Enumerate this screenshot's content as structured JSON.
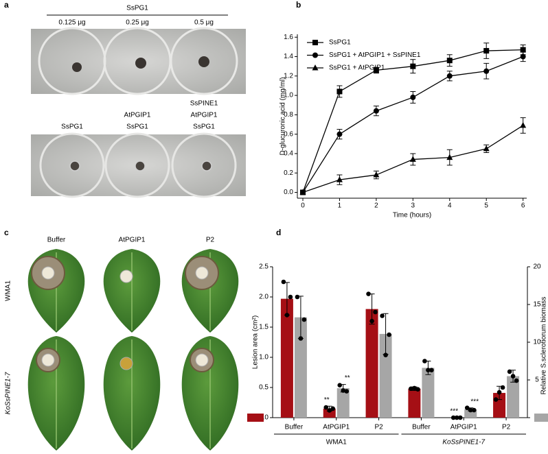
{
  "panels": {
    "a": {
      "label": "a",
      "header": "SsPG1",
      "doses": [
        "0.125 μg",
        "0.25 μg",
        "0.5 μg"
      ],
      "treatments": [
        [
          "SsPG1"
        ],
        [
          "AtPGIP1",
          "SsPG1"
        ],
        [
          "SsPINE1",
          "AtPGIP1",
          "SsPG1"
        ]
      ]
    },
    "c": {
      "label": "c",
      "columns": [
        "Buffer",
        "AtPGIP1",
        "P2"
      ],
      "rows": [
        "WMA1",
        "KoSsPINE1-7"
      ]
    }
  },
  "chart_data": [
    {
      "type": "line",
      "label": "b",
      "xlabel": "Time (hours)",
      "ylabel": "D-glucuronic acid (mg/ml)",
      "x": [
        0,
        1,
        2,
        3,
        4,
        5,
        6
      ],
      "xlim": [
        -0.15,
        6.1
      ],
      "xticks": [
        0,
        1,
        2,
        3,
        4,
        5,
        6
      ],
      "ylim": [
        -0.06,
        1.63
      ],
      "yticks": [
        {
          "value": 0,
          "label": "0.0"
        },
        0.2,
        0.4,
        0.6,
        0.8,
        {
          "value": 1,
          "label": "1.0"
        },
        1.2,
        1.4,
        1.6
      ],
      "legend": "upper left",
      "series": [
        {
          "name": "SsPG1",
          "color": "#000000",
          "marker": "square",
          "values": [
            0,
            1.04,
            1.26,
            1.3,
            1.36,
            1.46,
            1.47
          ],
          "errors": [
            0,
            0.06,
            0.03,
            0.07,
            0.06,
            0.08,
            0.05
          ]
        },
        {
          "name": "SsPG1 + AtPGIP1 + SsPINE1",
          "color": "#000000",
          "marker": "circle",
          "values": [
            0,
            0.6,
            0.84,
            0.98,
            1.2,
            1.25,
            1.4
          ],
          "errors": [
            0,
            0.05,
            0.05,
            0.06,
            0.05,
            0.08,
            0.05
          ]
        },
        {
          "name": "SsPG1 + AtPGIP1",
          "color": "#000000",
          "marker": "triangle",
          "values": [
            0,
            0.13,
            0.18,
            0.34,
            0.36,
            0.45,
            0.69
          ],
          "errors": [
            0,
            0.05,
            0.04,
            0.06,
            0.08,
            0.04,
            0.08
          ]
        }
      ]
    },
    {
      "type": "bar",
      "label": "d",
      "ylabel": "Lesion area (cm²)",
      "y2label": "Relative S.sclerotiorum biomass",
      "categories": [
        "Buffer",
        "AtPGIP1",
        "P2",
        "Buffer",
        "AtPGIP1",
        "P2"
      ],
      "group_labels": [
        "WMA1",
        "KoSsPINE1-7"
      ],
      "ylim": [
        0,
        2.5
      ],
      "yticks": [
        {
          "value": 0,
          "label": "0.0"
        },
        0.5,
        {
          "value": 1,
          "label": "1.0"
        },
        1.5,
        {
          "value": 2,
          "label": "2.0"
        },
        2.5
      ],
      "y2lim": [
        0,
        20
      ],
      "y2ticks": [
        0,
        5,
        10,
        15,
        20
      ],
      "series": [
        {
          "color": "#a50f15",
          "values": [
            1.97,
            0.15,
            1.8,
            0.48,
            0.0,
            0.41
          ],
          "errors": [
            0.27,
            0.04,
            0.25,
            0.03,
            0.0,
            0.11
          ],
          "points": [
            [
              2.25,
              2.0,
              1.7
            ],
            [
              0.17,
              0.15,
              0.12
            ],
            [
              2.05,
              1.75,
              1.6
            ],
            [
              0.48,
              0.47,
              0.49
            ],
            [
              0,
              0,
              0
            ],
            [
              0.3,
              0.5,
              0.42
            ]
          ],
          "significance": [
            null,
            "**",
            null,
            null,
            "***",
            null
          ]
        },
        {
          "color": "#a6a6a6",
          "axis": "y2",
          "values": [
            13.3,
            3.9,
            11.1,
            6.6,
            1.1,
            5.5
          ],
          "errors": [
            2.8,
            0.5,
            2.7,
            0.9,
            0.2,
            0.8
          ],
          "points": [
            [
              16,
              13,
              10.5
            ],
            [
              4.3,
              3.5,
              3.6
            ],
            [
              13.5,
              11,
              8.3
            ],
            [
              7.5,
              6.3,
              6.3
            ],
            [
              1.3,
              1.0,
              1.0
            ],
            [
              6.1,
              4.9,
              5.5
            ]
          ],
          "significance": [
            null,
            "**",
            null,
            null,
            "***",
            null
          ]
        }
      ]
    }
  ]
}
